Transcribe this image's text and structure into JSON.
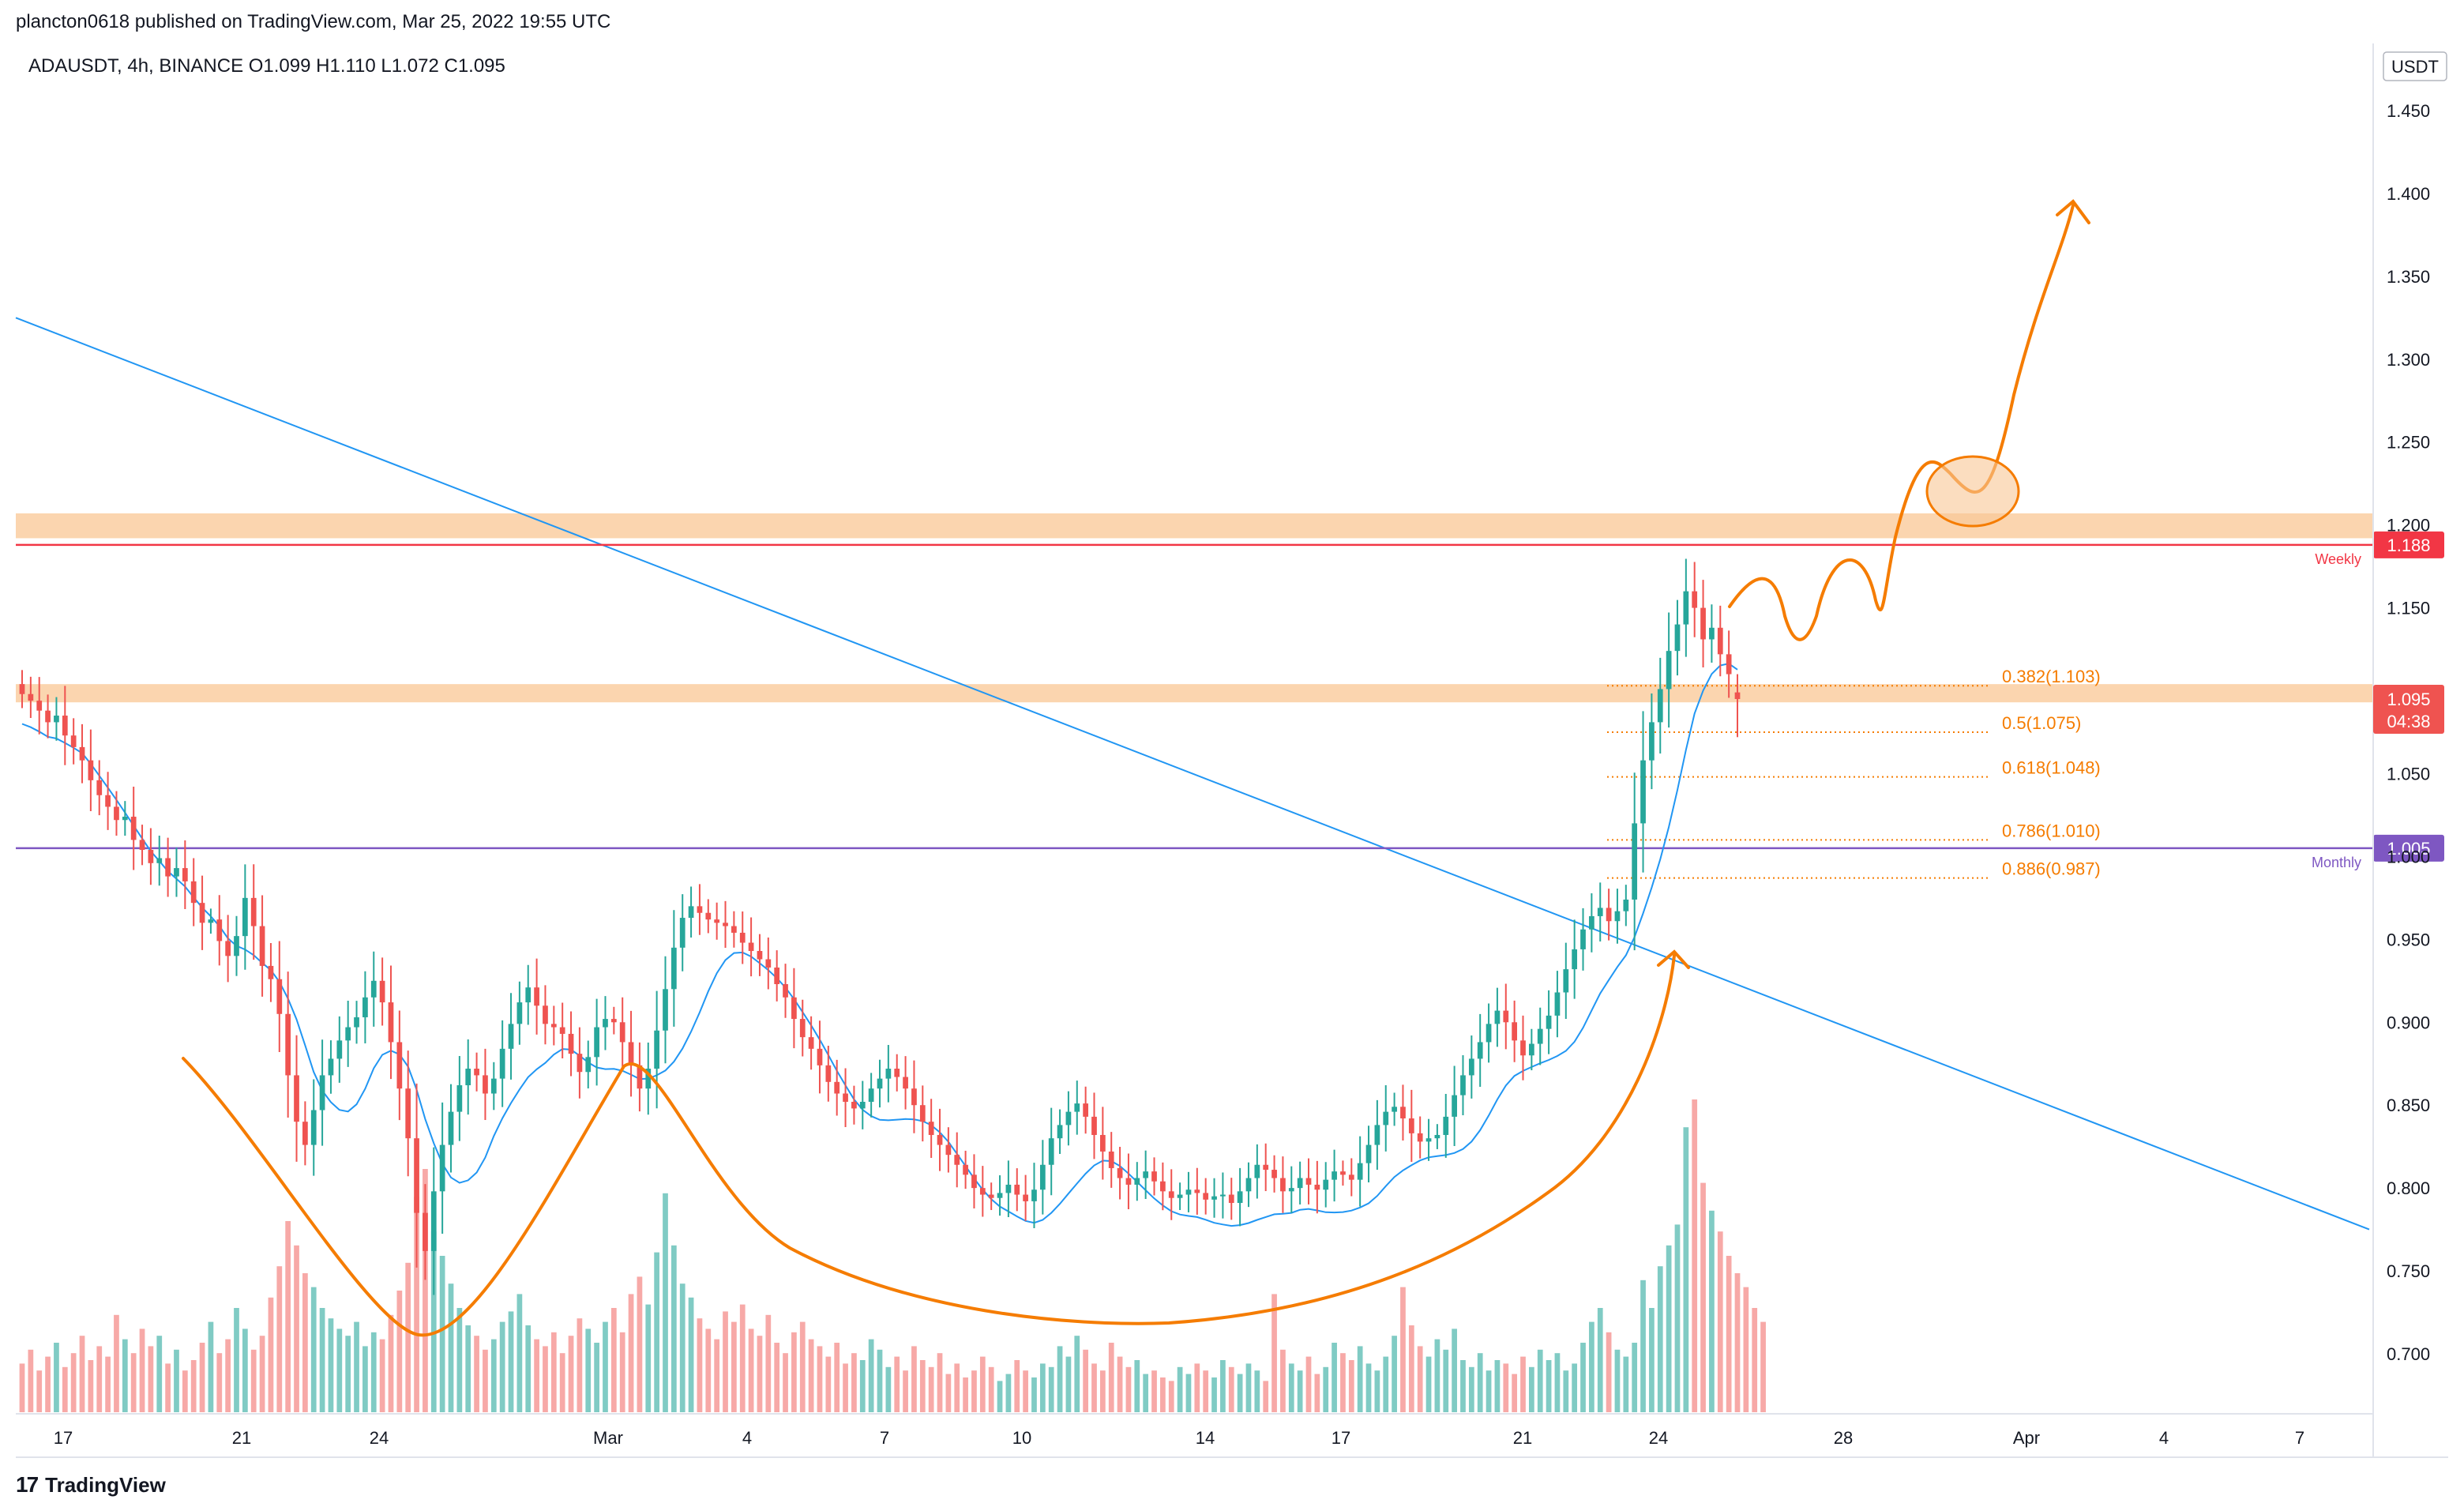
{
  "header": {
    "publisher": "plancton0618 published on TradingView.com, Mar 25, 2022 19:55 UTC",
    "symbol_line": "ADAUSDT, 4h, BINANCE  O1.099  H1.110  L1.072  C1.095"
  },
  "footer": {
    "logo_text": "TradingView",
    "logo_mark": "17"
  },
  "price_axis": {
    "currency_label": "USDT",
    "ticks": [
      "1.450",
      "1.400",
      "1.350",
      "1.300",
      "1.250",
      "1.200",
      "1.150",
      "1.100",
      "1.050",
      "1.000",
      "0.950",
      "0.900",
      "0.850",
      "0.800",
      "0.750",
      "0.700"
    ],
    "tick_values": [
      1.45,
      1.4,
      1.35,
      1.3,
      1.25,
      1.2,
      1.15,
      1.1,
      1.05,
      1.0,
      0.95,
      0.9,
      0.85,
      0.8,
      0.75,
      0.7
    ]
  },
  "chart_data": {
    "type": "candlestick",
    "symbol": "ADAUSDT",
    "timeframe": "4h",
    "exchange": "BINANCE",
    "ohlc_last": {
      "open": 1.099,
      "high": 1.11,
      "low": 1.072,
      "close": 1.095
    },
    "x_ticks": [
      "17",
      "21",
      "24",
      "Mar",
      "4",
      "7",
      "10",
      "14",
      "17",
      "21",
      "24",
      "28",
      "Apr",
      "4",
      "7"
    ],
    "ylim": [
      0.665,
      1.48
    ],
    "current_price": {
      "label": "1.095",
      "countdown": "04:38",
      "value": 1.095,
      "color": "#ef5350"
    },
    "levels": [
      {
        "name": "Weekly",
        "label": "1.188",
        "value": 1.188,
        "color": "#f23645"
      },
      {
        "name": "Monthly",
        "label": "1.005",
        "value": 1.005,
        "color": "#7e57c2"
      }
    ],
    "zones": [
      {
        "from": 1.192,
        "to": 1.207,
        "color": "#f9c794"
      },
      {
        "from": 1.093,
        "to": 1.104,
        "color": "#f9c794"
      }
    ],
    "fibonacci": [
      {
        "label": "0.382(1.103)",
        "value": 1.103
      },
      {
        "label": "0.5(1.075)",
        "value": 1.075
      },
      {
        "label": "0.618(1.048)",
        "value": 1.048
      },
      {
        "label": "0.786(1.010)",
        "value": 1.01
      },
      {
        "label": "0.886(0.987)",
        "value": 0.987
      }
    ],
    "trendline": {
      "from": {
        "t": 0,
        "price": 1.325
      },
      "to": {
        "t": 1,
        "price": 0.775
      },
      "color": "#2196f3"
    },
    "colors": {
      "up": "#26a69a",
      "down": "#ef5350",
      "ma": "#2196f3",
      "annotation": "#f57c00",
      "fib": "#f57c00"
    },
    "closes": [
      1.098,
      1.094,
      1.088,
      1.081,
      1.085,
      1.073,
      1.066,
      1.058,
      1.046,
      1.037,
      1.03,
      1.022,
      1.024,
      1.01,
      1.004,
      0.996,
      0.999,
      0.988,
      0.993,
      0.985,
      0.972,
      0.96,
      0.962,
      0.949,
      0.94,
      0.952,
      0.975,
      0.958,
      0.934,
      0.926,
      0.905,
      0.868,
      0.84,
      0.826,
      0.847,
      0.868,
      0.878,
      0.889,
      0.897,
      0.903,
      0.915,
      0.925,
      0.912,
      0.888,
      0.86,
      0.83,
      0.785,
      0.762,
      0.798,
      0.826,
      0.846,
      0.862,
      0.872,
      0.868,
      0.857,
      0.866,
      0.884,
      0.899,
      0.912,
      0.921,
      0.91,
      0.899,
      0.897,
      0.893,
      0.881,
      0.87,
      0.879,
      0.897,
      0.902,
      0.9,
      0.888,
      0.874,
      0.86,
      0.872,
      0.895,
      0.92,
      0.945,
      0.963,
      0.97,
      0.966,
      0.962,
      0.96,
      0.958,
      0.954,
      0.948,
      0.943,
      0.938,
      0.933,
      0.923,
      0.915,
      0.902,
      0.891,
      0.884,
      0.874,
      0.864,
      0.857,
      0.852,
      0.848,
      0.852,
      0.86,
      0.866,
      0.872,
      0.867,
      0.86,
      0.85,
      0.84,
      0.832,
      0.826,
      0.82,
      0.814,
      0.808,
      0.8,
      0.796,
      0.794,
      0.797,
      0.802,
      0.796,
      0.792,
      0.799,
      0.814,
      0.83,
      0.838,
      0.846,
      0.851,
      0.843,
      0.832,
      0.822,
      0.812,
      0.806,
      0.802,
      0.806,
      0.81,
      0.804,
      0.798,
      0.794,
      0.796,
      0.799,
      0.797,
      0.793,
      0.795,
      0.796,
      0.791,
      0.798,
      0.806,
      0.814,
      0.811,
      0.806,
      0.798,
      0.8,
      0.806,
      0.802,
      0.799,
      0.805,
      0.81,
      0.808,
      0.805,
      0.815,
      0.826,
      0.838,
      0.846,
      0.849,
      0.842,
      0.833,
      0.828,
      0.83,
      0.832,
      0.843,
      0.856,
      0.868,
      0.878,
      0.888,
      0.899,
      0.907,
      0.9,
      0.889,
      0.88,
      0.887,
      0.896,
      0.904,
      0.918,
      0.932,
      0.944,
      0.956,
      0.964,
      0.969,
      0.961,
      0.967,
      0.974,
      1.02,
      1.058,
      1.081,
      1.101,
      1.124,
      1.14,
      1.16,
      1.15,
      1.131,
      1.138,
      1.122,
      1.11,
      1.095
    ],
    "volume_note": "relative volume bars, 0-1",
    "volumes": [
      0.14,
      0.18,
      0.12,
      0.16,
      0.2,
      0.13,
      0.17,
      0.22,
      0.15,
      0.19,
      0.16,
      0.28,
      0.21,
      0.17,
      0.24,
      0.19,
      0.22,
      0.14,
      0.18,
      0.12,
      0.15,
      0.2,
      0.26,
      0.17,
      0.21,
      0.3,
      0.24,
      0.18,
      0.22,
      0.33,
      0.42,
      0.55,
      0.48,
      0.4,
      0.36,
      0.3,
      0.27,
      0.24,
      0.22,
      0.26,
      0.19,
      0.23,
      0.21,
      0.28,
      0.35,
      0.43,
      0.62,
      0.7,
      0.52,
      0.45,
      0.37,
      0.3,
      0.25,
      0.22,
      0.18,
      0.21,
      0.26,
      0.29,
      0.34,
      0.25,
      0.21,
      0.19,
      0.23,
      0.17,
      0.22,
      0.27,
      0.24,
      0.2,
      0.26,
      0.3,
      0.23,
      0.34,
      0.39,
      0.31,
      0.46,
      0.63,
      0.48,
      0.37,
      0.33,
      0.27,
      0.24,
      0.21,
      0.29,
      0.26,
      0.31,
      0.24,
      0.22,
      0.28,
      0.2,
      0.17,
      0.23,
      0.26,
      0.21,
      0.19,
      0.16,
      0.2,
      0.14,
      0.17,
      0.15,
      0.21,
      0.18,
      0.13,
      0.16,
      0.12,
      0.19,
      0.15,
      0.13,
      0.17,
      0.11,
      0.14,
      0.1,
      0.12,
      0.16,
      0.13,
      0.09,
      0.11,
      0.15,
      0.12,
      0.1,
      0.14,
      0.13,
      0.19,
      0.16,
      0.22,
      0.18,
      0.14,
      0.12,
      0.2,
      0.16,
      0.13,
      0.15,
      0.11,
      0.12,
      0.1,
      0.09,
      0.13,
      0.11,
      0.14,
      0.12,
      0.1,
      0.15,
      0.13,
      0.11,
      0.14,
      0.12,
      0.09,
      0.34,
      0.18,
      0.14,
      0.12,
      0.16,
      0.11,
      0.13,
      0.2,
      0.17,
      0.15,
      0.19,
      0.14,
      0.12,
      0.16,
      0.22,
      0.36,
      0.25,
      0.19,
      0.16,
      0.21,
      0.18,
      0.24,
      0.15,
      0.13,
      0.17,
      0.12,
      0.15,
      0.14,
      0.11,
      0.16,
      0.13,
      0.18,
      0.15,
      0.17,
      0.12,
      0.14,
      0.2,
      0.26,
      0.3,
      0.23,
      0.18,
      0.16,
      0.2,
      0.38,
      0.3,
      0.42,
      0.48,
      0.54,
      0.82,
      0.9,
      0.66,
      0.58,
      0.52,
      0.45,
      0.4,
      0.36,
      0.3,
      0.26
    ]
  }
}
